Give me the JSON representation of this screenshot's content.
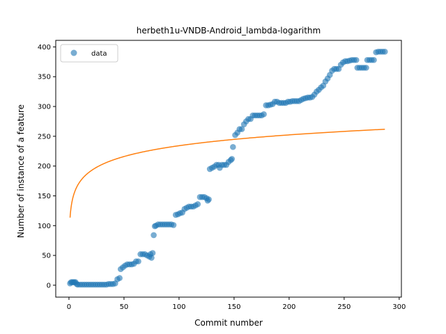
{
  "chart_data": {
    "type": "scatter",
    "title": "herbeth1u-VNDB-Android_lambda-logarithm",
    "xlabel": "Commit number",
    "ylabel": "Number of instance of a feature",
    "xlim": [
      -12,
      302
    ],
    "ylim": [
      -20,
      411
    ],
    "xticks": [
      0,
      50,
      100,
      150,
      200,
      250,
      300
    ],
    "yticks": [
      0,
      50,
      100,
      150,
      200,
      250,
      300,
      350,
      400
    ],
    "grid": false,
    "legend": {
      "placement": "top-left",
      "entries": [
        "data"
      ]
    },
    "colors": {
      "scatter": "#1f77b4",
      "fit": "#ff7f0e"
    },
    "series": [
      {
        "name": "data",
        "kind": "scatter",
        "points": [
          [
            1,
            3
          ],
          [
            2,
            5
          ],
          [
            3,
            5
          ],
          [
            4,
            5
          ],
          [
            5,
            5
          ],
          [
            6,
            5
          ],
          [
            7,
            2
          ],
          [
            8,
            1
          ],
          [
            10,
            1
          ],
          [
            12,
            1
          ],
          [
            14,
            1
          ],
          [
            16,
            1
          ],
          [
            18,
            1
          ],
          [
            20,
            1
          ],
          [
            22,
            1
          ],
          [
            24,
            1
          ],
          [
            26,
            1
          ],
          [
            28,
            1
          ],
          [
            30,
            1
          ],
          [
            32,
            1
          ],
          [
            34,
            1
          ],
          [
            36,
            2
          ],
          [
            38,
            2
          ],
          [
            40,
            2
          ],
          [
            42,
            3
          ],
          [
            44,
            10
          ],
          [
            46,
            12
          ],
          [
            47,
            27
          ],
          [
            49,
            30
          ],
          [
            51,
            33
          ],
          [
            53,
            35
          ],
          [
            55,
            35
          ],
          [
            57,
            35
          ],
          [
            59,
            36
          ],
          [
            61,
            40
          ],
          [
            63,
            40
          ],
          [
            65,
            52
          ],
          [
            67,
            52
          ],
          [
            69,
            52
          ],
          [
            71,
            50
          ],
          [
            73,
            48
          ],
          [
            74,
            52
          ],
          [
            75,
            46
          ],
          [
            76,
            54
          ],
          [
            77,
            84
          ],
          [
            78,
            99
          ],
          [
            79,
            100
          ],
          [
            81,
            102
          ],
          [
            83,
            102
          ],
          [
            85,
            102
          ],
          [
            87,
            102
          ],
          [
            89,
            102
          ],
          [
            91,
            102
          ],
          [
            93,
            102
          ],
          [
            95,
            101
          ],
          [
            97,
            118
          ],
          [
            99,
            119
          ],
          [
            101,
            121
          ],
          [
            103,
            122
          ],
          [
            105,
            128
          ],
          [
            107,
            130
          ],
          [
            109,
            132
          ],
          [
            111,
            132
          ],
          [
            113,
            132
          ],
          [
            115,
            134
          ],
          [
            117,
            136
          ],
          [
            119,
            148
          ],
          [
            121,
            148
          ],
          [
            123,
            148
          ],
          [
            125,
            146
          ],
          [
            126,
            142
          ],
          [
            127,
            144
          ],
          [
            128,
            195
          ],
          [
            130,
            197
          ],
          [
            132,
            199
          ],
          [
            134,
            202
          ],
          [
            136,
            202
          ],
          [
            137,
            197
          ],
          [
            139,
            202
          ],
          [
            141,
            202
          ],
          [
            143,
            202
          ],
          [
            145,
            207
          ],
          [
            147,
            210
          ],
          [
            148,
            212
          ],
          [
            149,
            232
          ],
          [
            151,
            252
          ],
          [
            153,
            256
          ],
          [
            155,
            262
          ],
          [
            157,
            262
          ],
          [
            159,
            270
          ],
          [
            161,
            275
          ],
          [
            163,
            279
          ],
          [
            165,
            279
          ],
          [
            167,
            285
          ],
          [
            169,
            285
          ],
          [
            171,
            285
          ],
          [
            173,
            285
          ],
          [
            175,
            285
          ],
          [
            177,
            287
          ],
          [
            179,
            302
          ],
          [
            181,
            302
          ],
          [
            183,
            303
          ],
          [
            185,
            304
          ],
          [
            187,
            308
          ],
          [
            189,
            308
          ],
          [
            191,
            306
          ],
          [
            193,
            306
          ],
          [
            195,
            306
          ],
          [
            197,
            306
          ],
          [
            199,
            308
          ],
          [
            201,
            308
          ],
          [
            203,
            309
          ],
          [
            205,
            309
          ],
          [
            207,
            309
          ],
          [
            209,
            309
          ],
          [
            211,
            311
          ],
          [
            213,
            313
          ],
          [
            215,
            314
          ],
          [
            217,
            315
          ],
          [
            219,
            315
          ],
          [
            221,
            316
          ],
          [
            223,
            320
          ],
          [
            225,
            325
          ],
          [
            227,
            328
          ],
          [
            229,
            332
          ],
          [
            231,
            335
          ],
          [
            233,
            342
          ],
          [
            235,
            347
          ],
          [
            237,
            353
          ],
          [
            239,
            360
          ],
          [
            241,
            363
          ],
          [
            243,
            363
          ],
          [
            245,
            363
          ],
          [
            247,
            370
          ],
          [
            249,
            374
          ],
          [
            251,
            376
          ],
          [
            253,
            376
          ],
          [
            255,
            377
          ],
          [
            257,
            378
          ],
          [
            259,
            378
          ],
          [
            261,
            378
          ],
          [
            262,
            365
          ],
          [
            264,
            365
          ],
          [
            266,
            365
          ],
          [
            268,
            365
          ],
          [
            270,
            365
          ],
          [
            271,
            378
          ],
          [
            273,
            378
          ],
          [
            275,
            378
          ],
          [
            277,
            378
          ],
          [
            279,
            391
          ],
          [
            281,
            392
          ],
          [
            283,
            392
          ],
          [
            285,
            392
          ],
          [
            287,
            392
          ]
        ]
      },
      {
        "kind": "line",
        "function": "26.2*ln(x)+113.5",
        "x_start": 1,
        "x_end": 287
      }
    ]
  }
}
